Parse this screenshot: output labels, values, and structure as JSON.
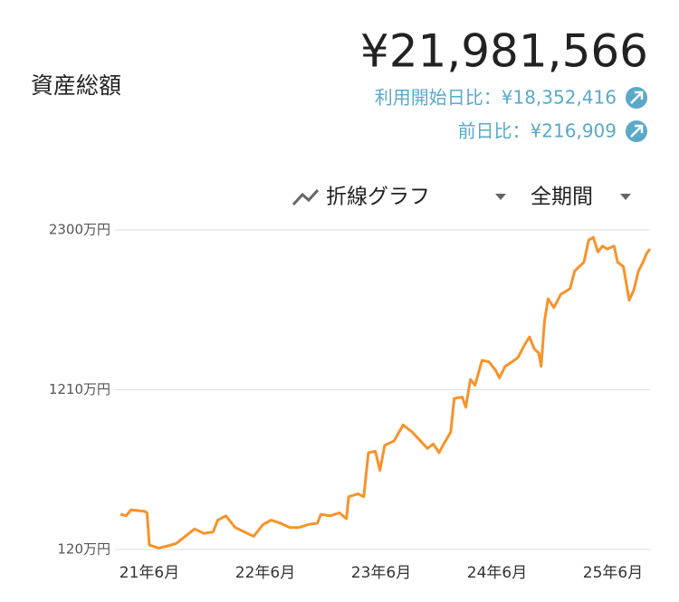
{
  "header": {
    "title": "資産総額",
    "total": "¥21,981,566",
    "since_start": "利用開始日比：¥18,352,416",
    "day_change": "前日比：¥216,909"
  },
  "controls": {
    "chart_type": "折線グラフ",
    "period": "全期間"
  },
  "chart_data": {
    "type": "line",
    "color": "#f7932b",
    "grid": true,
    "ylim": [
      120,
      2300
    ],
    "yticks": [
      {
        "value": 120,
        "label": "120万円"
      },
      {
        "value": 1210,
        "label": "1210万円"
      },
      {
        "value": 2300,
        "label": "2300万円"
      }
    ],
    "xlim": [
      2021.17,
      2025.74
    ],
    "xticks": [
      {
        "value": 2021.42,
        "label": "21年6月"
      },
      {
        "value": 2022.42,
        "label": "22年6月"
      },
      {
        "value": 2023.42,
        "label": "23年6月"
      },
      {
        "value": 2024.42,
        "label": "24年6月"
      },
      {
        "value": 2025.42,
        "label": "25年6月"
      }
    ],
    "x": [
      2021.17,
      2021.22,
      2021.26,
      2021.38,
      2021.4,
      2021.42,
      2021.5,
      2021.58,
      2021.65,
      2021.73,
      2021.81,
      2021.89,
      2021.97,
      2022.01,
      2022.08,
      2022.16,
      2022.24,
      2022.32,
      2022.4,
      2022.47,
      2022.55,
      2022.63,
      2022.71,
      2022.79,
      2022.87,
      2022.9,
      2022.98,
      2023.06,
      2023.12,
      2023.14,
      2023.22,
      2023.27,
      2023.31,
      2023.37,
      2023.41,
      2023.45,
      2023.53,
      2023.61,
      2023.69,
      2023.76,
      2023.82,
      2023.87,
      2023.92,
      2023.96,
      2024.02,
      2024.05,
      2024.12,
      2024.15,
      2024.19,
      2024.23,
      2024.29,
      2024.35,
      2024.41,
      2024.44,
      2024.49,
      2024.55,
      2024.6,
      2024.66,
      2024.7,
      2024.74,
      2024.78,
      2024.8,
      2024.83,
      2024.86,
      2024.91,
      2024.97,
      2025.05,
      2025.09,
      2025.13,
      2025.17,
      2025.21,
      2025.25,
      2025.29,
      2025.33,
      2025.37,
      2025.43,
      2025.46,
      2025.51,
      2025.56,
      2025.6,
      2025.64,
      2025.68,
      2025.71,
      2025.74
    ],
    "values": [
      360,
      350,
      390,
      380,
      370,
      150,
      130,
      145,
      160,
      210,
      260,
      230,
      240,
      320,
      350,
      270,
      240,
      210,
      290,
      320,
      300,
      270,
      270,
      290,
      300,
      360,
      350,
      370,
      330,
      480,
      500,
      480,
      780,
      790,
      660,
      830,
      860,
      970,
      920,
      860,
      810,
      840,
      780,
      840,
      920,
      1150,
      1160,
      1090,
      1280,
      1240,
      1410,
      1400,
      1340,
      1290,
      1370,
      1400,
      1430,
      1520,
      1570,
      1490,
      1460,
      1370,
      1680,
      1830,
      1770,
      1860,
      1900,
      2020,
      2050,
      2080,
      2230,
      2250,
      2150,
      2190,
      2170,
      2190,
      2080,
      2050,
      1820,
      1890,
      2020,
      2080,
      2140,
      2170
    ]
  }
}
